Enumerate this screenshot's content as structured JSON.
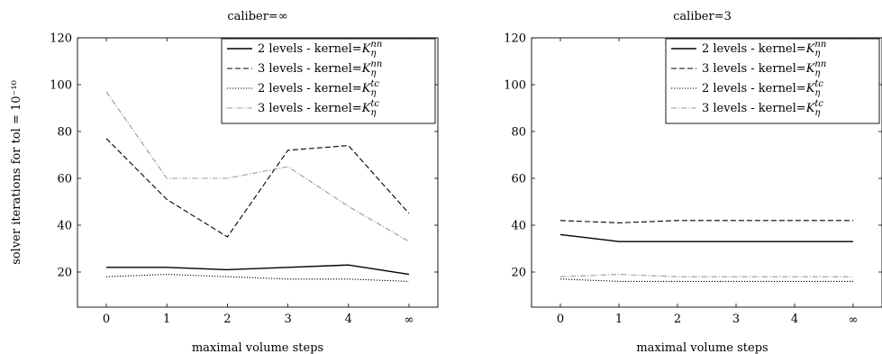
{
  "chart_data": [
    {
      "type": "line",
      "title": "caliber=∞",
      "xlabel": "maximal volume steps",
      "ylabel": "solver iterations for tol = 10⁻¹⁰",
      "categories": [
        "0",
        "1",
        "2",
        "3",
        "4",
        "∞"
      ],
      "ylim": [
        5,
        120
      ],
      "yticks": [
        20,
        40,
        60,
        80,
        100,
        120
      ],
      "legend_position": "top-right",
      "grid": false,
      "series": [
        {
          "name": "2 levels - kernel=Kη^nn",
          "style": "solid",
          "color": "#000000",
          "values": [
            22,
            22,
            21,
            22,
            23,
            19
          ]
        },
        {
          "name": "3 levels - kernel=Kη^nn",
          "style": "dashed",
          "color": "#000000",
          "values": [
            77,
            51,
            35,
            72,
            74,
            45
          ]
        },
        {
          "name": "2 levels - kernel=Kη^tc",
          "style": "dotted",
          "color": "#000000",
          "values": [
            18,
            19,
            18,
            17,
            17,
            16
          ]
        },
        {
          "name": "3 levels - kernel=Kη^tc",
          "style": "dashdot",
          "color": "#999999",
          "values": [
            97,
            60,
            60,
            65,
            48,
            33
          ]
        }
      ]
    },
    {
      "type": "line",
      "title": "caliber=3",
      "xlabel": "maximal volume steps",
      "ylabel": "",
      "categories": [
        "0",
        "1",
        "2",
        "3",
        "4",
        "∞"
      ],
      "ylim": [
        5,
        120
      ],
      "yticks": [
        20,
        40,
        60,
        80,
        100,
        120
      ],
      "legend_position": "top-right",
      "grid": false,
      "series": [
        {
          "name": "2 levels - kernel=Kη^nn",
          "style": "solid",
          "color": "#000000",
          "values": [
            36,
            33,
            33,
            33,
            33,
            33
          ]
        },
        {
          "name": "3 levels - kernel=Kη^nn",
          "style": "dashed",
          "color": "#000000",
          "values": [
            42,
            41,
            42,
            42,
            42,
            42
          ]
        },
        {
          "name": "2 levels - kernel=Kη^tc",
          "style": "dotted",
          "color": "#000000",
          "values": [
            17,
            16,
            16,
            16,
            16,
            16
          ]
        },
        {
          "name": "3 levels - kernel=Kη^tc",
          "style": "dashdot",
          "color": "#999999",
          "values": [
            18,
            19,
            18,
            18,
            18,
            18
          ]
        }
      ]
    }
  ]
}
